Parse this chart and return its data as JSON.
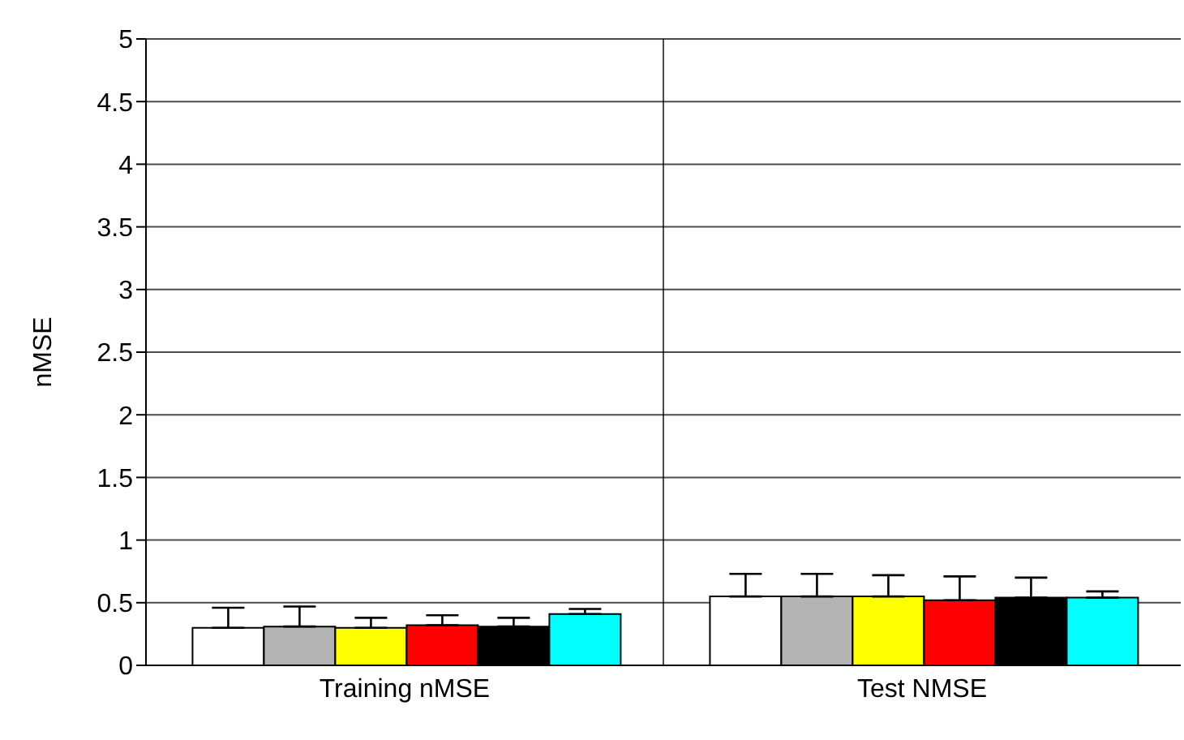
{
  "chart_data": {
    "type": "bar",
    "ylabel": "nMSE",
    "categories": [
      "Training nMSE",
      "Test NMSE"
    ],
    "series": [
      {
        "color": "#ffffff",
        "values": [
          0.3,
          0.55
        ],
        "errors": [
          [
            0.3,
            0.46
          ],
          [
            0.55,
            0.73
          ]
        ]
      },
      {
        "color": "#b3b3b3",
        "values": [
          0.31,
          0.55
        ],
        "errors": [
          [
            0.31,
            0.47
          ],
          [
            0.55,
            0.73
          ]
        ]
      },
      {
        "color": "#ffff00",
        "values": [
          0.3,
          0.55
        ],
        "errors": [
          [
            0.3,
            0.38
          ],
          [
            0.55,
            0.72
          ]
        ]
      },
      {
        "color": "#ff0000",
        "values": [
          0.32,
          0.52
        ],
        "errors": [
          [
            0.32,
            0.4
          ],
          [
            0.52,
            0.71
          ]
        ]
      },
      {
        "color": "#000000",
        "values": [
          0.31,
          0.54
        ],
        "errors": [
          [
            0.31,
            0.38
          ],
          [
            0.54,
            0.7
          ]
        ]
      },
      {
        "color": "#00ffff",
        "values": [
          0.41,
          0.54
        ],
        "errors": [
          [
            0.41,
            0.45
          ],
          [
            0.54,
            0.59
          ]
        ]
      }
    ],
    "ylim": [
      0,
      5
    ],
    "yticks": [
      0,
      0.5,
      1,
      1.5,
      2,
      2.5,
      3,
      3.5,
      4,
      4.5,
      5
    ],
    "grid": true,
    "legend": false
  }
}
